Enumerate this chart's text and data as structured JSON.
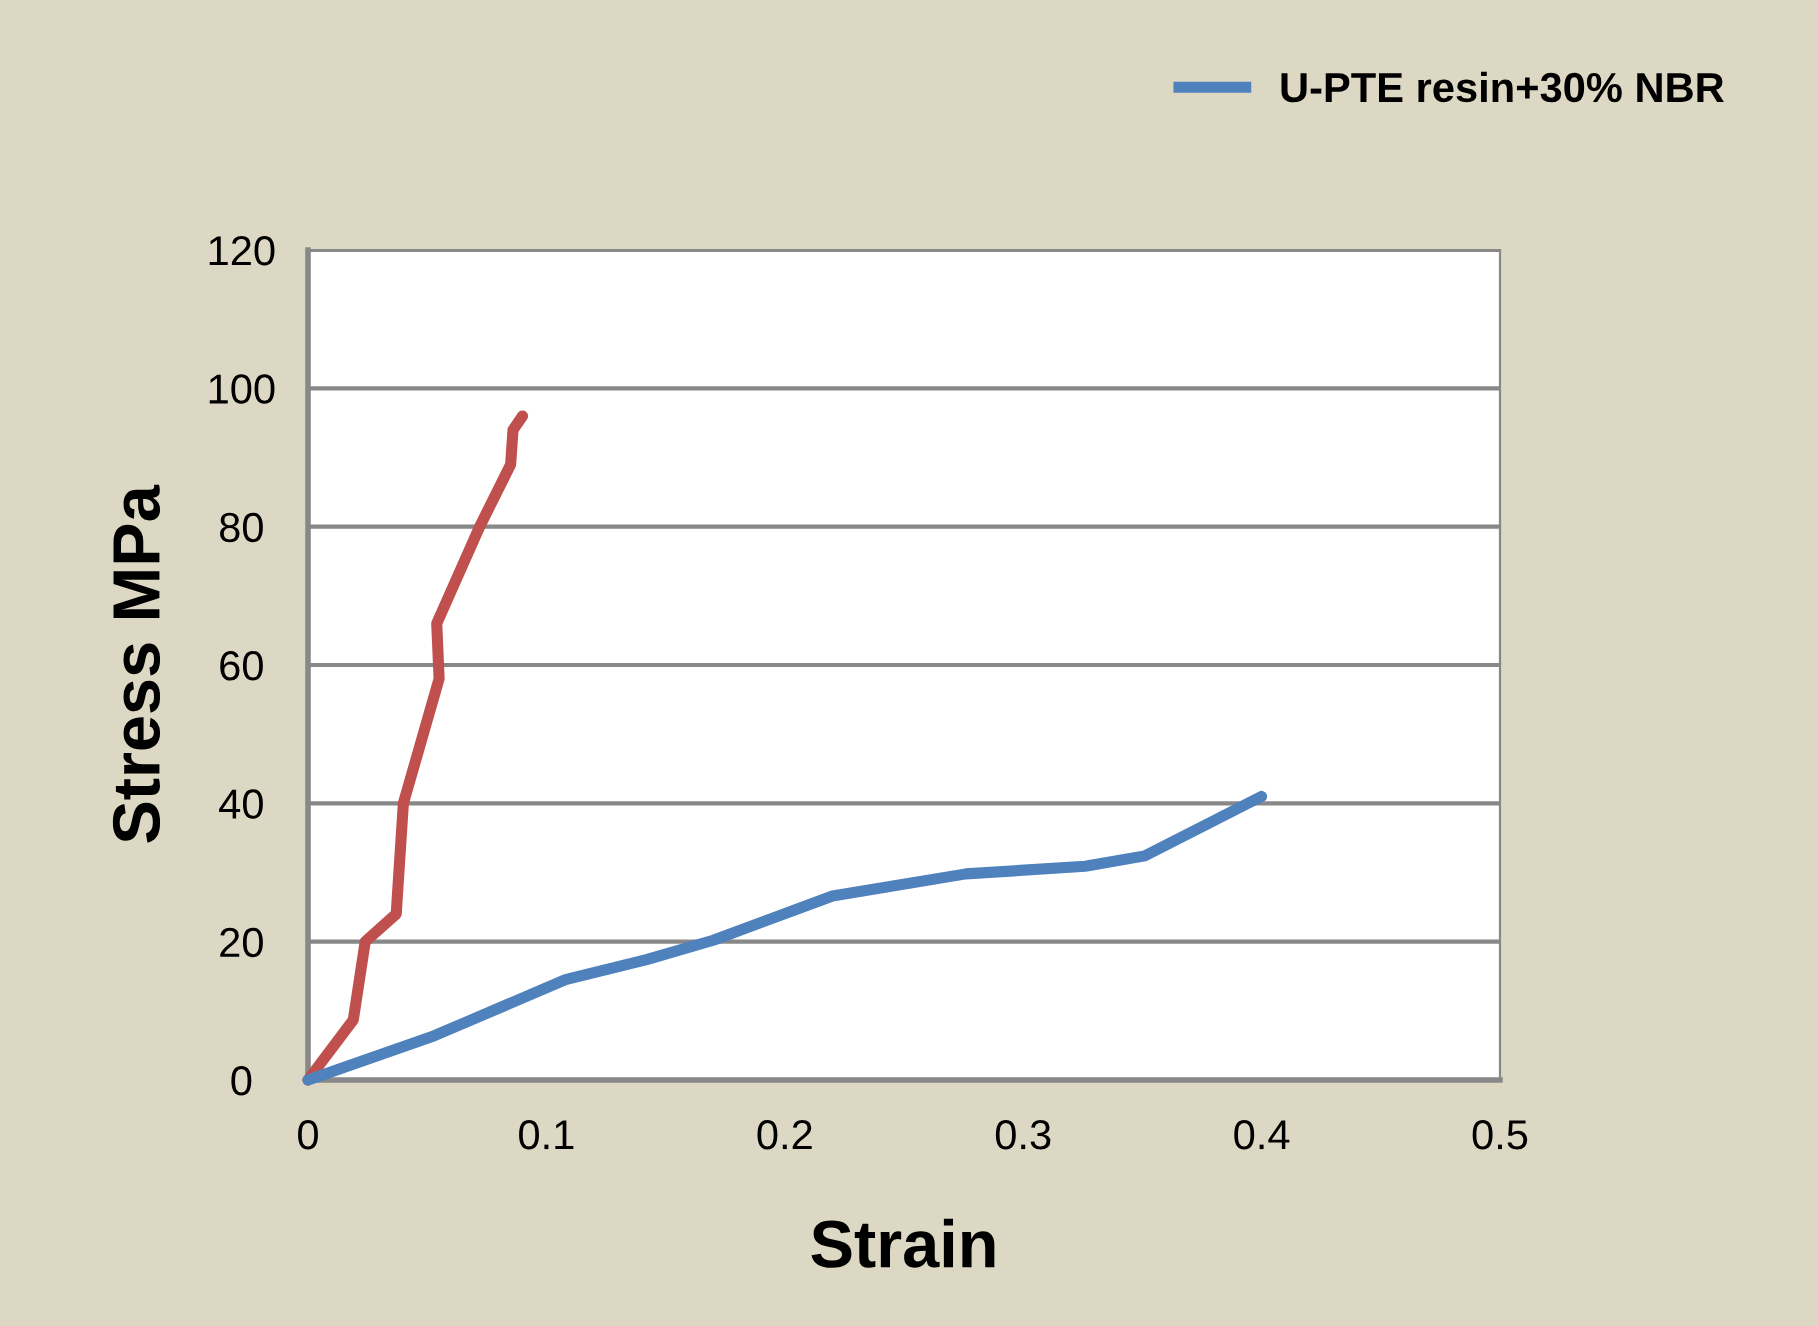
{
  "chart_data": {
    "type": "line",
    "xlabel": "Strain",
    "ylabel": "Stress MPa",
    "xlim": [
      0,
      0.5
    ],
    "xticks": [
      0,
      0.1,
      0.2,
      0.3,
      0.4,
      0.5
    ],
    "ylim": [
      0,
      120
    ],
    "yticks": [
      0,
      20,
      40,
      60,
      80,
      100,
      120
    ],
    "grid": "y",
    "legend": "top right",
    "marker": "none",
    "line_style": "solid",
    "series": [
      {
        "color": "#c0504d",
        "x": [
          0,
          0.019,
          0.024,
          0.037,
          0.04,
          0.055,
          0.054,
          0.072,
          0.085,
          0.086,
          0.09
        ],
        "values": [
          0,
          8.7,
          20,
          24,
          40,
          58,
          66,
          80,
          89,
          94,
          96
        ]
      },
      {
        "name": "U-PTE resin+30% NBR",
        "color": "#4f81bd",
        "x": [
          0,
          0.053,
          0.108,
          0.142,
          0.17,
          0.22,
          0.276,
          0.326,
          0.351,
          0.4
        ],
        "values": [
          0,
          6.4,
          14.5,
          17.4,
          20.2,
          26.6,
          29.8,
          30.9,
          32.4,
          41
        ]
      }
    ]
  }
}
